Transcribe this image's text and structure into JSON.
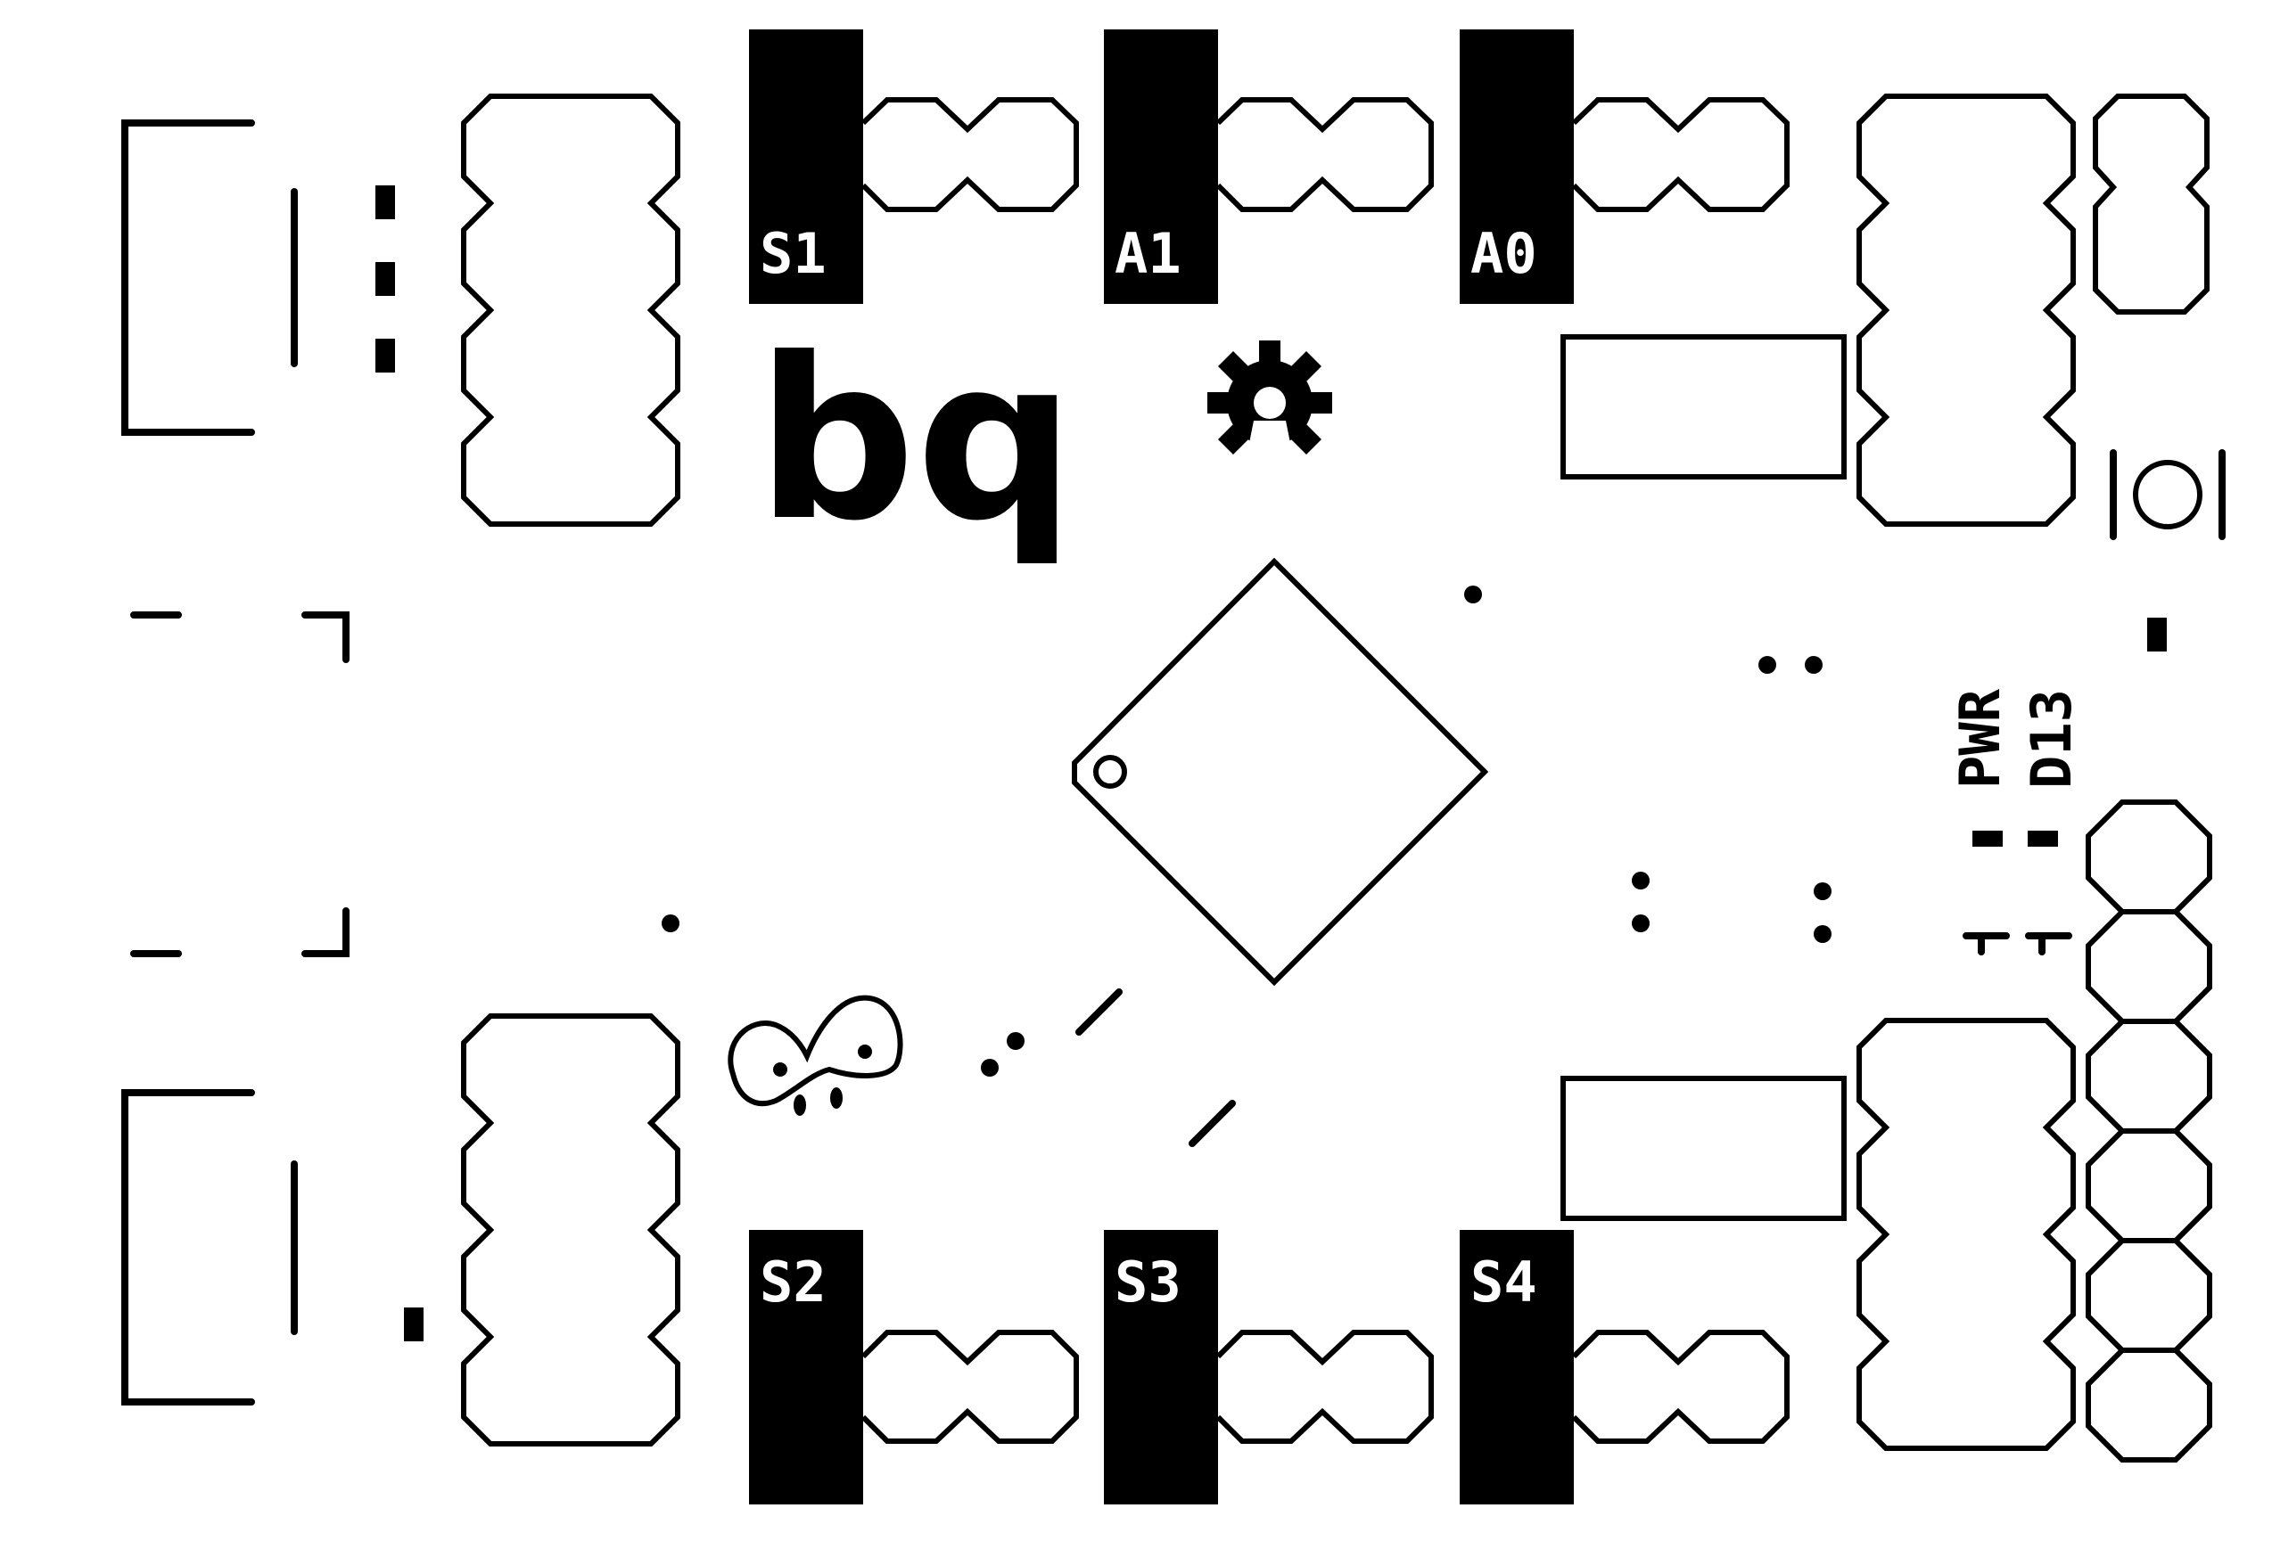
{
  "labels": {
    "s1": "S1",
    "a1": "A1",
    "a0": "A0",
    "s2": "S2",
    "s3": "S3",
    "s4": "S4",
    "pwr": "PWR",
    "d13": "D13"
  },
  "logo": {
    "text": "bq"
  },
  "icons": {
    "gear": "open-hardware-gear-icon",
    "robot": "robot-mascot-icon"
  },
  "colors": {
    "silkscreen": "#000000",
    "background": "#ffffff"
  }
}
